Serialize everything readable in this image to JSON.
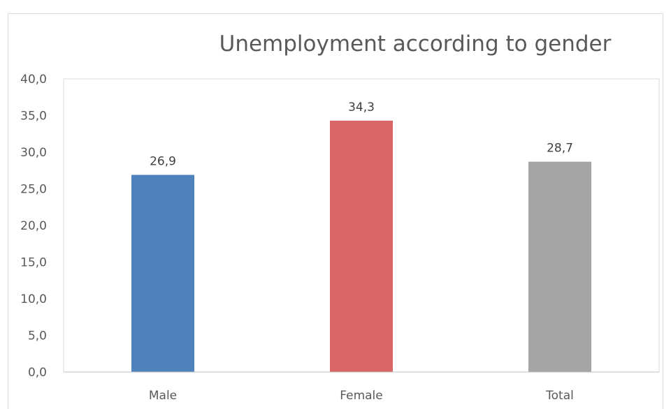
{
  "chart_data": {
    "type": "bar",
    "title": "Unemployment according to gender",
    "categories": [
      "Male",
      "Female",
      "Total"
    ],
    "values": [
      26.9,
      34.3,
      28.7
    ],
    "value_labels": [
      "26,9",
      "34,3",
      "28,7"
    ],
    "colors": [
      "#4f81bd",
      "#d96566",
      "#a5a5a5"
    ],
    "ylim": [
      0,
      40
    ],
    "yticks": [
      "0,0",
      "5,0",
      "10,0",
      "15,0",
      "20,0",
      "25,0",
      "30,0",
      "35,0",
      "40,0"
    ],
    "xlabel": "",
    "ylabel": "",
    "grid": false,
    "legend": "none"
  }
}
